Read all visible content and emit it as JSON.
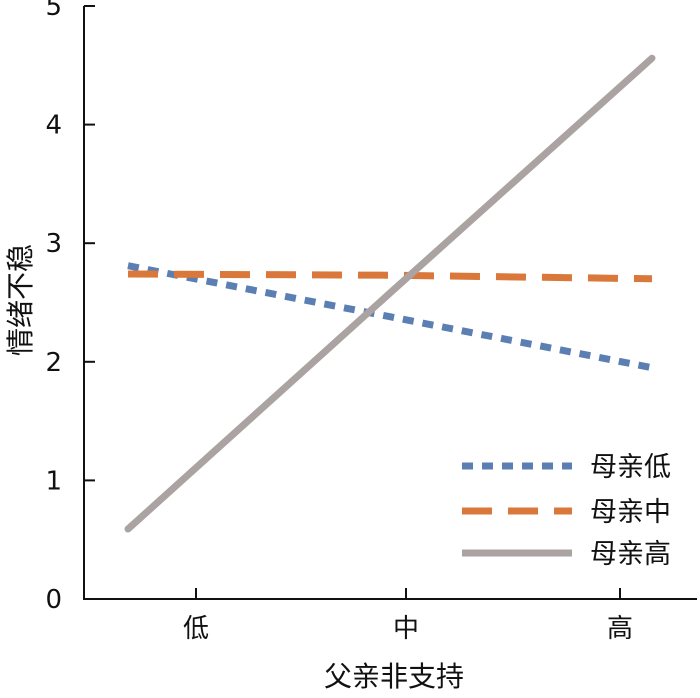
{
  "chart_data": {
    "type": "line",
    "title": "",
    "xlabel": "父亲非支持",
    "ylabel": "情绪不稳",
    "categories": [
      "低",
      "中",
      "高"
    ],
    "ylim": [
      0,
      5
    ],
    "yticks": [
      "0",
      "1",
      "2",
      "3",
      "4",
      "5"
    ],
    "grid": false,
    "legend_position": "bottom-right",
    "series": [
      {
        "name": "母亲低",
        "values": [
          2.81,
          2.38,
          1.95
        ],
        "color": "#5b7fb3",
        "line_style": "dotted"
      },
      {
        "name": "母亲中",
        "values": [
          2.74,
          2.73,
          2.7
        ],
        "color": "#d9783a",
        "line_style": "dashed"
      },
      {
        "name": "母亲高",
        "values": [
          0.59,
          2.58,
          4.56
        ],
        "color": "#aba3a2",
        "line_style": "solid"
      }
    ]
  }
}
